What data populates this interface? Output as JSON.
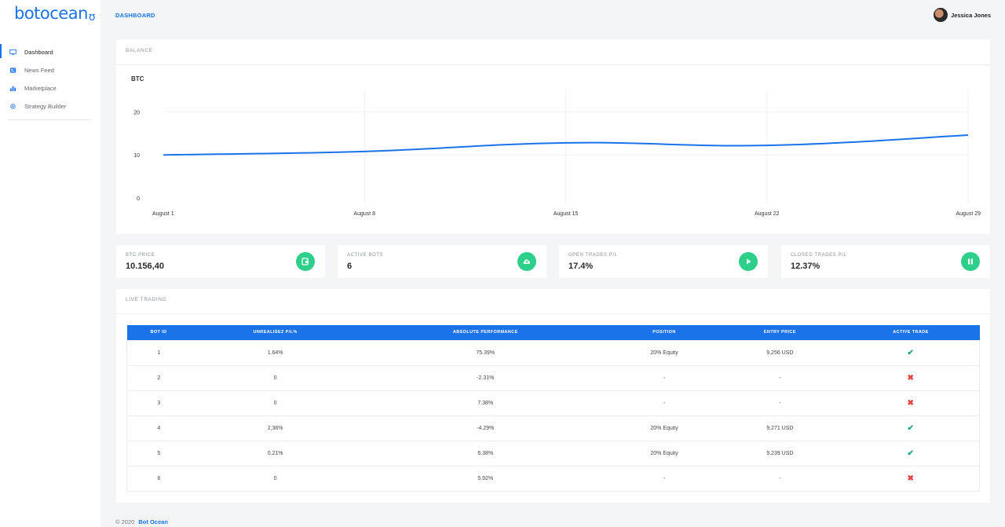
{
  "app": {
    "logo_text": "botocean",
    "page_title": "DASHBOARD"
  },
  "user": {
    "name": "Jessica Jones"
  },
  "sidebar": {
    "items": [
      {
        "label": "Dashboard",
        "icon": "monitor-icon",
        "active": true
      },
      {
        "label": "News Feed",
        "icon": "newspaper-icon",
        "active": false
      },
      {
        "label": "Marketplace",
        "icon": "bar-chart-icon",
        "active": false
      },
      {
        "label": "Strategy Builder",
        "icon": "gear-icon",
        "active": false
      }
    ]
  },
  "balance": {
    "title": "BALANCE"
  },
  "chart_data": {
    "type": "line",
    "title": "",
    "ylabel": "BTC",
    "xlabel": "",
    "x": [
      "August 1",
      "August 8",
      "August 15",
      "August 22",
      "August 29"
    ],
    "ylim": [
      0,
      20
    ],
    "yticks": [
      0,
      10,
      20
    ],
    "grid": true,
    "series": [
      {
        "values": [
          10,
          10.8,
          12.8,
          12.2,
          14.6
        ]
      }
    ],
    "color": "#1a73e8"
  },
  "stats": [
    {
      "label": "BTC PRICE",
      "value": "10.156,40",
      "icon": "wallet-icon"
    },
    {
      "label": "ACTIVE BOTS",
      "value": "6",
      "icon": "cloud-upload-icon"
    },
    {
      "label": "OPEN TRADES P/L",
      "value": "17.4%",
      "icon": "play-icon"
    },
    {
      "label": "CLOSED TRADES P/L",
      "value": "12.37%",
      "icon": "pause-icon"
    }
  ],
  "live_trading": {
    "title": "LIVE TRADING",
    "columns": [
      "BOT ID",
      "UNREALISEZ P/L%",
      "ABSOLUTE PERFORMANCE",
      "POSITION",
      "ENTRY PRICE",
      "ACTIVE TRADE"
    ],
    "rows": [
      {
        "id": "1",
        "upl": "1.64%",
        "upl_sign": "pos",
        "perf": "75.39%",
        "perf_sign": "pos",
        "position": "20% Equity",
        "entry": "9,256 USD",
        "active": true
      },
      {
        "id": "2",
        "upl": "0",
        "upl_sign": "neutral",
        "perf": "-2.31%",
        "perf_sign": "neg",
        "position": "-",
        "entry": "-",
        "active": false
      },
      {
        "id": "3",
        "upl": "0",
        "upl_sign": "neutral",
        "perf": "7.38%",
        "perf_sign": "pos",
        "position": "-",
        "entry": "-",
        "active": false
      },
      {
        "id": "4",
        "upl": "2,36%",
        "upl_sign": "pos",
        "perf": "-4.29%",
        "perf_sign": "neg",
        "position": "20% Equity",
        "entry": "9,271 USD",
        "active": true
      },
      {
        "id": "5",
        "upl": "0.21%",
        "upl_sign": "pos",
        "perf": "6.38%",
        "perf_sign": "pos",
        "position": "20% Equity",
        "entry": "9,239 USD",
        "active": true
      },
      {
        "id": "6",
        "upl": "0",
        "upl_sign": "neutral",
        "perf": "5.92%",
        "perf_sign": "pos",
        "position": "-",
        "entry": "-",
        "active": false
      }
    ]
  },
  "footer": {
    "copyright": "© 2020",
    "link": "Bot Ocean"
  },
  "colors": {
    "accent": "#1a73e8",
    "success": "#2ecf8a",
    "positive": "#20a0a0",
    "negative": "#e14b3b"
  }
}
